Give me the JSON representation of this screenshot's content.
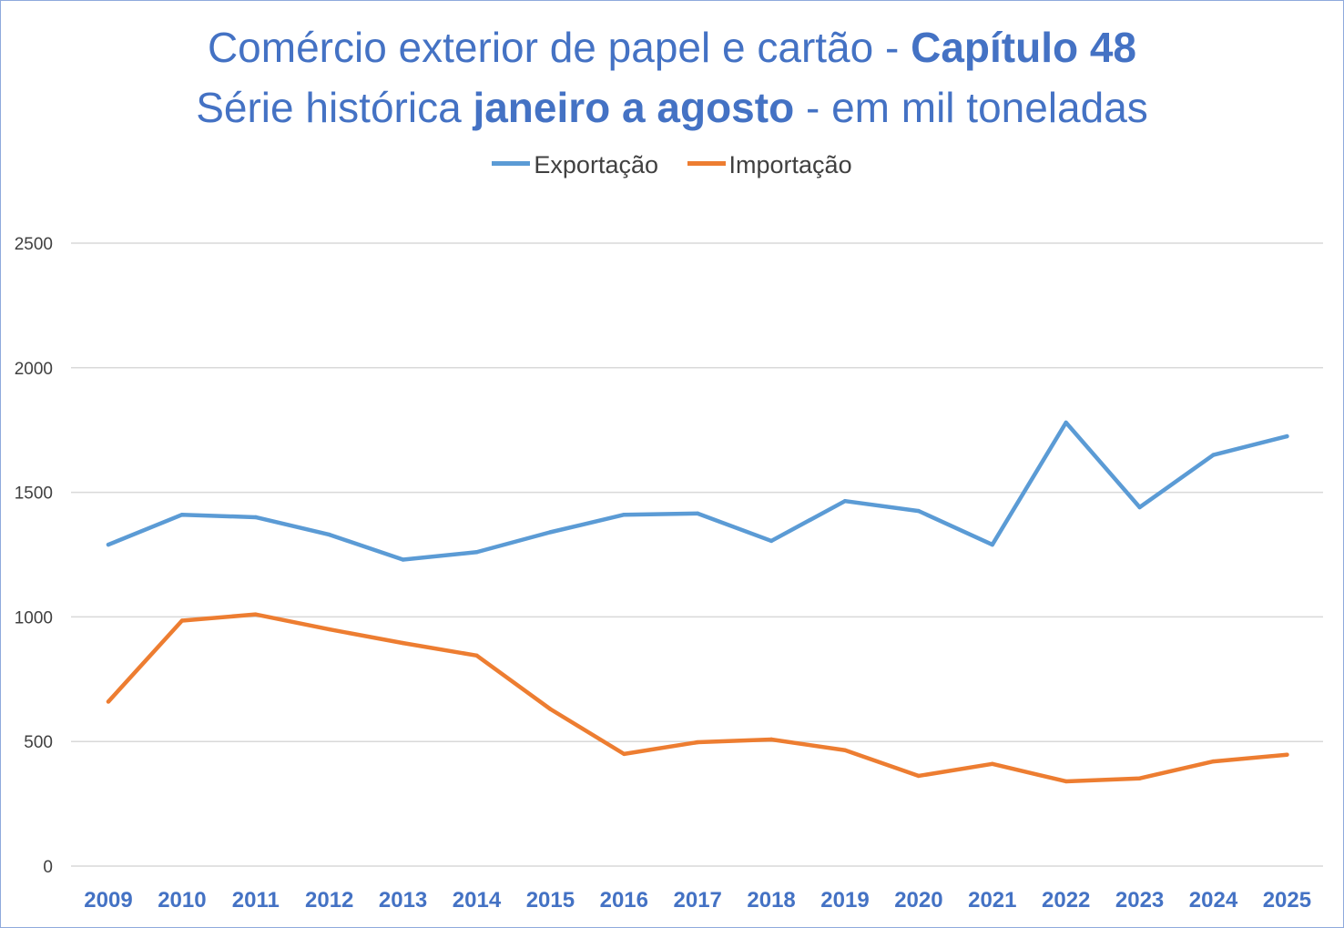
{
  "chart_data": {
    "type": "line",
    "title_line1_regular": "Comércio exterior de papel e cartão - ",
    "title_line1_bold": "Capítulo 48",
    "title_line2_regular_a": "Série histórica ",
    "title_line2_bold": "janeiro a agosto",
    "title_line2_regular_b": " - em mil toneladas",
    "xlabel": "",
    "ylabel": "",
    "ylim": [
      0,
      2500
    ],
    "yticks": [
      "0",
      "500",
      "1000",
      "1500",
      "2000",
      "2500"
    ],
    "grid": true,
    "legend_position": "top-center",
    "categories": [
      "2009",
      "2010",
      "2011",
      "2012",
      "2013",
      "2014",
      "2015",
      "2016",
      "2017",
      "2018",
      "2019",
      "2020",
      "2021",
      "2022",
      "2023",
      "2024",
      "2025"
    ],
    "series": [
      {
        "name": "Exportação",
        "color": "#5b9bd5",
        "values": [
          1290,
          1410,
          1400,
          1330,
          1230,
          1260,
          1340,
          1410,
          1415,
          1305,
          1465,
          1425,
          1290,
          1780,
          1440,
          1650,
          1725
        ]
      },
      {
        "name": "Importação",
        "color": "#ed7d31",
        "values": [
          660,
          985,
          1010,
          950,
          895,
          845,
          630,
          450,
          497,
          508,
          465,
          362,
          410,
          340,
          352,
          420,
          447
        ]
      }
    ]
  }
}
